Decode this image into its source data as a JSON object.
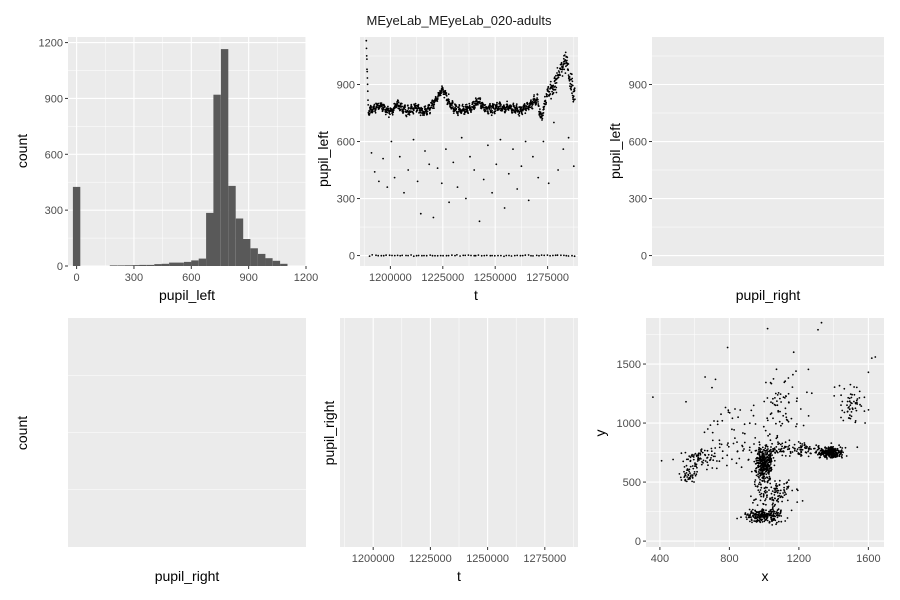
{
  "title": "MEyeLab_MEyeLab_020-adults",
  "colors": {
    "panel_bg": "#ebebeb",
    "grid": "#ffffff",
    "bar_fill": "#595959",
    "point": "#000000"
  },
  "chart_data": [
    {
      "id": "hist-left",
      "type": "bar",
      "xlabel": "pupil_left",
      "ylabel": "count",
      "xlim": [
        -45,
        1200
      ],
      "ylim": [
        0,
        1230
      ],
      "xticks": [
        0,
        300,
        600,
        900,
        1200
      ],
      "xtick_labels": [
        "0",
        "300",
        "600",
        "900",
        "1200"
      ],
      "yticks": [
        0,
        300,
        600,
        900,
        1200
      ],
      "ytick_labels": [
        "0",
        "300",
        "600",
        "900",
        "1200"
      ],
      "grid": true,
      "bin_width": 38.7,
      "bins": [
        {
          "x": 0,
          "count": 425
        },
        {
          "x": 193,
          "count": 3
        },
        {
          "x": 232,
          "count": 3
        },
        {
          "x": 271,
          "count": 4
        },
        {
          "x": 310,
          "count": 5
        },
        {
          "x": 348,
          "count": 6
        },
        {
          "x": 387,
          "count": 6
        },
        {
          "x": 426,
          "count": 10
        },
        {
          "x": 464,
          "count": 12
        },
        {
          "x": 503,
          "count": 18
        },
        {
          "x": 542,
          "count": 18
        },
        {
          "x": 581,
          "count": 22
        },
        {
          "x": 619,
          "count": 30
        },
        {
          "x": 658,
          "count": 40
        },
        {
          "x": 697,
          "count": 285
        },
        {
          "x": 735,
          "count": 920
        },
        {
          "x": 774,
          "count": 1165
        },
        {
          "x": 813,
          "count": 430
        },
        {
          "x": 852,
          "count": 255
        },
        {
          "x": 890,
          "count": 145
        },
        {
          "x": 929,
          "count": 95
        },
        {
          "x": 968,
          "count": 65
        },
        {
          "x": 1006,
          "count": 42
        },
        {
          "x": 1045,
          "count": 28
        },
        {
          "x": 1084,
          "count": 12
        }
      ]
    },
    {
      "id": "time-left",
      "type": "scatter",
      "xlabel": "t",
      "ylabel": "pupil_left",
      "xlim": [
        1185500,
        1289500
      ],
      "ylim": [
        -55,
        1150
      ],
      "xticks": [
        1200000,
        1225000,
        1250000,
        1275000
      ],
      "xtick_labels": [
        "1200000",
        "1225000",
        "1250000",
        "1275000"
      ],
      "yticks": [
        0,
        300,
        600,
        900
      ],
      "ytick_labels": [
        "0",
        "300",
        "600",
        "900"
      ],
      "grid": true,
      "trace": {
        "x_start": 1188500,
        "x_end": 1288000,
        "knots": [
          [
            1188500,
            1110
          ],
          [
            1189500,
            760
          ],
          [
            1195000,
            790
          ],
          [
            1200000,
            755
          ],
          [
            1203000,
            800
          ],
          [
            1208000,
            760
          ],
          [
            1212000,
            780
          ],
          [
            1216000,
            750
          ],
          [
            1220000,
            790
          ],
          [
            1222000,
            825
          ],
          [
            1225000,
            880
          ],
          [
            1228000,
            800
          ],
          [
            1233000,
            760
          ],
          [
            1238000,
            775
          ],
          [
            1242000,
            810
          ],
          [
            1246000,
            770
          ],
          [
            1250000,
            775
          ],
          [
            1256000,
            780
          ],
          [
            1262000,
            760
          ],
          [
            1267000,
            800
          ],
          [
            1270000,
            825
          ],
          [
            1272000,
            720
          ],
          [
            1275000,
            860
          ],
          [
            1278000,
            890
          ],
          [
            1281000,
            975
          ],
          [
            1284000,
            1030
          ],
          [
            1286000,
            900
          ],
          [
            1288000,
            850
          ]
        ]
      },
      "zero_line": {
        "x_start": 1190000,
        "x_end": 1288000,
        "y": 0
      },
      "outliers": [
        [
          1191000,
          540
        ],
        [
          1192500,
          440
        ],
        [
          1194500,
          390
        ],
        [
          1196500,
          510
        ],
        [
          1198500,
          360
        ],
        [
          1200500,
          600
        ],
        [
          1202000,
          410
        ],
        [
          1204500,
          520
        ],
        [
          1206500,
          330
        ],
        [
          1208500,
          450
        ],
        [
          1211000,
          610
        ],
        [
          1213000,
          390
        ],
        [
          1214500,
          220
        ],
        [
          1216500,
          550
        ],
        [
          1218500,
          480
        ],
        [
          1220500,
          200
        ],
        [
          1222500,
          460
        ],
        [
          1224500,
          380
        ],
        [
          1226500,
          560
        ],
        [
          1228000,
          280
        ],
        [
          1230000,
          490
        ],
        [
          1232000,
          360
        ],
        [
          1234000,
          620
        ],
        [
          1236000,
          300
        ],
        [
          1238000,
          520
        ],
        [
          1240000,
          450
        ],
        [
          1242500,
          180
        ],
        [
          1244500,
          400
        ],
        [
          1246500,
          580
        ],
        [
          1248500,
          330
        ],
        [
          1250500,
          480
        ],
        [
          1252500,
          610
        ],
        [
          1254500,
          250
        ],
        [
          1256500,
          430
        ],
        [
          1258500,
          560
        ],
        [
          1260500,
          350
        ],
        [
          1262500,
          470
        ],
        [
          1264500,
          600
        ],
        [
          1266000,
          290
        ],
        [
          1268000,
          520
        ],
        [
          1270500,
          410
        ],
        [
          1273000,
          600
        ],
        [
          1275500,
          380
        ],
        [
          1278000,
          700
        ],
        [
          1280000,
          450
        ],
        [
          1282500,
          560
        ],
        [
          1285000,
          620
        ],
        [
          1287500,
          470
        ]
      ]
    },
    {
      "id": "time-left-empty",
      "type": "scatter",
      "xlabel": "pupil_right",
      "ylabel": "pupil_left",
      "ylim": [
        -55,
        1150
      ],
      "yticks": [
        0,
        300,
        600,
        900
      ],
      "ytick_labels": [
        "0",
        "300",
        "600",
        "900"
      ],
      "grid": true,
      "points": []
    },
    {
      "id": "hist-right",
      "type": "bar",
      "xlabel": "pupil_right",
      "ylabel": "count",
      "grid": true,
      "bins": []
    },
    {
      "id": "time-right",
      "type": "scatter",
      "xlabel": "t",
      "ylabel": "pupil_right",
      "xlim": [
        1185500,
        1289500
      ],
      "xticks": [
        1200000,
        1225000,
        1250000,
        1275000
      ],
      "xtick_labels": [
        "1200000",
        "1225000",
        "1250000",
        "1275000"
      ],
      "grid": true,
      "points": []
    },
    {
      "id": "gaze-xy",
      "type": "scatter",
      "xlabel": "x",
      "ylabel": "y",
      "xlim": [
        320,
        1690
      ],
      "ylim": [
        -50,
        1890
      ],
      "xticks": [
        400,
        800,
        1200,
        1600
      ],
      "xtick_labels": [
        "400",
        "800",
        "1200",
        "1600"
      ],
      "yticks": [
        0,
        500,
        1000,
        1500
      ],
      "ytick_labels": [
        "0",
        "500",
        "1000",
        "1500"
      ],
      "grid": true,
      "clusters": [
        {
          "cx": 1000,
          "cy": 650,
          "sx": 40,
          "sy": 120,
          "n": 320
        },
        {
          "cx": 1380,
          "cy": 750,
          "sx": 55,
          "sy": 35,
          "n": 260
        },
        {
          "cx": 1000,
          "cy": 220,
          "sx": 90,
          "sy": 50,
          "n": 230
        },
        {
          "cx": 1050,
          "cy": 400,
          "sx": 110,
          "sy": 90,
          "n": 120
        },
        {
          "cx": 1150,
          "cy": 780,
          "sx": 220,
          "sy": 60,
          "n": 150
        },
        {
          "cx": 640,
          "cy": 700,
          "sx": 90,
          "sy": 90,
          "n": 80
        },
        {
          "cx": 560,
          "cy": 550,
          "sx": 40,
          "sy": 50,
          "n": 40
        },
        {
          "cx": 1500,
          "cy": 1150,
          "sx": 70,
          "sy": 140,
          "n": 60
        },
        {
          "cx": 1100,
          "cy": 1150,
          "sx": 120,
          "sy": 250,
          "n": 70
        },
        {
          "cx": 850,
          "cy": 900,
          "sx": 200,
          "sy": 300,
          "n": 60
        }
      ],
      "points": [
        [
          360,
          1220
        ],
        [
          410,
          680
        ],
        [
          550,
          1180
        ],
        [
          700,
          1300
        ],
        [
          720,
          1370
        ],
        [
          790,
          1640
        ],
        [
          1020,
          1800
        ],
        [
          1330,
          1850
        ],
        [
          1310,
          1790
        ],
        [
          1620,
          1550
        ],
        [
          1640,
          1560
        ],
        [
          1600,
          1430
        ],
        [
          1170,
          1600
        ],
        [
          1190,
          1210
        ],
        [
          940,
          1150
        ],
        [
          660,
          1390
        ]
      ]
    }
  ]
}
